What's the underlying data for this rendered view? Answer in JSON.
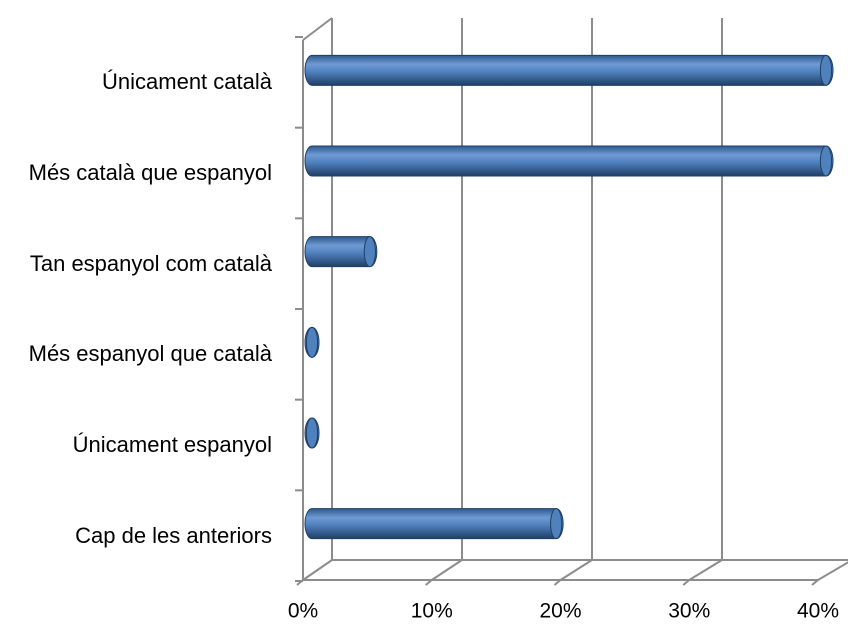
{
  "chart_data": {
    "type": "bar",
    "orientation": "horizontal",
    "categories": [
      "Únicament català",
      "Més català que espanyol",
      "Tan espanyol com català",
      "Més espanyol que català",
      "Únicament espanyol",
      "Cap de les anteriors"
    ],
    "values": [
      40,
      40,
      4.5,
      0,
      0,
      19
    ],
    "color": "#4f81bd",
    "xlim": [
      0,
      40
    ],
    "xticks": [
      {
        "value": 0,
        "label": "0%"
      },
      {
        "value": 10,
        "label": "10%"
      },
      {
        "value": 20,
        "label": "20%"
      },
      {
        "value": 30,
        "label": "30%"
      },
      {
        "value": 40,
        "label": "40%"
      }
    ],
    "grid": true
  }
}
